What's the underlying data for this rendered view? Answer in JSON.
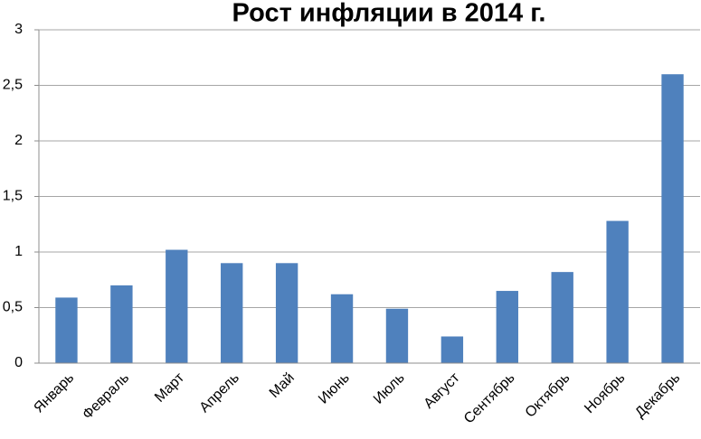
{
  "chart_data": {
    "type": "bar",
    "title": "Рост инфляции в 2014 г.",
    "categories": [
      "Январь",
      "Февраль",
      "Март",
      "Апрель",
      "Май",
      "Июнь",
      "Июль",
      "Август",
      "Сентябрь",
      "Октябрь",
      "Ноябрь",
      "Декабрь"
    ],
    "values": [
      0.59,
      0.7,
      1.02,
      0.9,
      0.9,
      0.62,
      0.49,
      0.24,
      0.65,
      0.82,
      1.28,
      2.6
    ],
    "color": "#4f81bd",
    "ylim": [
      0,
      3
    ],
    "yticks": [
      0,
      {
        "value": 0.5,
        "label": "0,5"
      },
      1,
      {
        "value": 1.5,
        "label": "1,5"
      },
      2,
      {
        "value": 2.5,
        "label": "2,5"
      },
      3
    ],
    "grid": true
  }
}
